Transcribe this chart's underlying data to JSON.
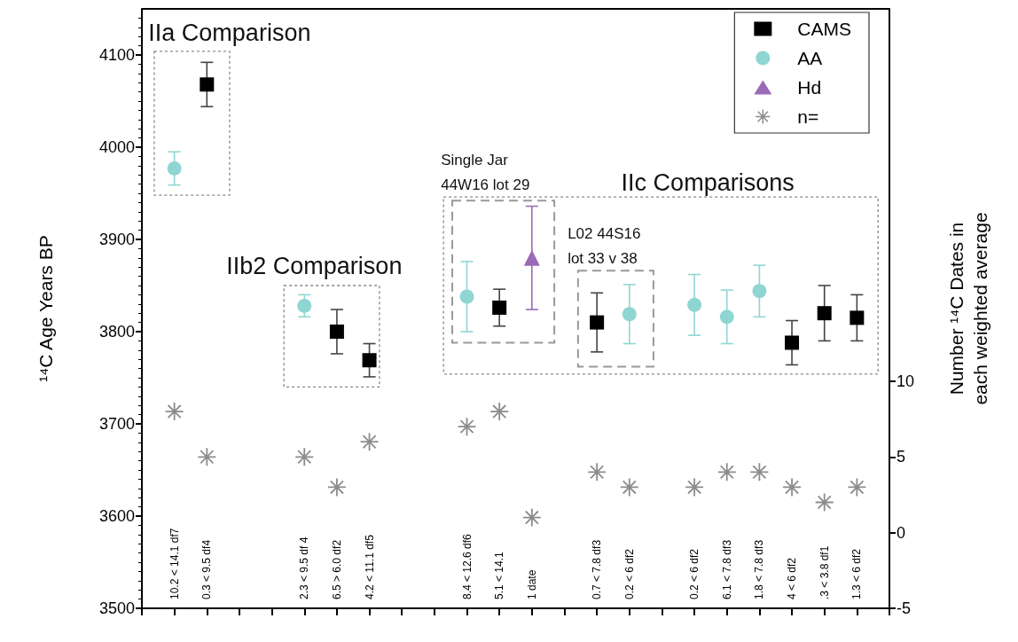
{
  "chart_data": {
    "type": "scatter",
    "ylabel": "¹⁴C Age Years BP",
    "y2label": "Number ¹⁴C Dates in\neach weighted average",
    "categories": [
      null,
      "10.2 < 14.1 df7",
      "0.3 < 9.5 df4",
      null,
      null,
      "2.3 < 9.5 df 4",
      "6.5 > 6.0 df2",
      "4.2 < 11.1 df5",
      null,
      null,
      "8.4 < 12.6 df6",
      "5.1 < 14.1",
      "1 date",
      null,
      "0.7 < 7.8 df3",
      "0.2 < 6 df2",
      null,
      "0.2 < 6 df2",
      "6.1 < 7.8 df3",
      "1.8 < 7.8 df3",
      "4 < 6 df2",
      ".3 < 3.8 df1",
      "1.3 < 6 df2",
      null
    ],
    "ylim": [
      3500,
      4150
    ],
    "yticks": [
      3500,
      3600,
      3700,
      3800,
      3900,
      4000,
      4100
    ],
    "y2lim": [
      -5,
      34.6
    ],
    "y2ticks": [
      -5,
      0,
      5,
      10
    ],
    "grid": false,
    "legend": "top right",
    "series": [
      {
        "name": "CAMS",
        "color": "#000000",
        "marker": "square",
        "values": [
          null,
          null,
          4068,
          null,
          null,
          null,
          3800,
          3769,
          null,
          null,
          null,
          3826,
          null,
          null,
          3810,
          null,
          null,
          null,
          null,
          null,
          3788,
          3820,
          3815,
          null
        ],
        "errors": [
          null,
          null,
          24,
          null,
          null,
          null,
          24,
          18,
          null,
          null,
          null,
          20,
          null,
          null,
          32,
          null,
          null,
          null,
          null,
          null,
          24,
          30,
          25,
          null
        ]
      },
      {
        "name": "AA",
        "color": "#8fd6d2",
        "marker": "circle",
        "values": [
          null,
          3977,
          null,
          null,
          null,
          3828,
          null,
          null,
          null,
          null,
          3838,
          null,
          null,
          null,
          null,
          3819,
          null,
          3829,
          3816,
          3844,
          null,
          null,
          null,
          null
        ],
        "errors": [
          null,
          18,
          null,
          null,
          null,
          12,
          null,
          null,
          null,
          null,
          38,
          null,
          null,
          null,
          null,
          32,
          null,
          33,
          29,
          28,
          null,
          null,
          null,
          null
        ]
      },
      {
        "name": "Hd",
        "color": "#9a6bb5",
        "marker": "triangle",
        "values": [
          null,
          null,
          null,
          null,
          null,
          null,
          null,
          null,
          null,
          null,
          null,
          null,
          3880,
          null,
          null,
          null,
          null,
          null,
          null,
          null,
          null,
          null,
          null,
          null
        ],
        "errors": [
          null,
          null,
          null,
          null,
          null,
          null,
          null,
          null,
          null,
          null,
          null,
          null,
          [
            3824,
            3936
          ],
          null,
          null,
          null,
          null,
          null,
          null,
          null,
          null,
          null,
          null,
          null
        ]
      },
      {
        "name": "n=",
        "color": "#8c8c8c",
        "marker": "cross",
        "axis": "y2",
        "values": [
          null,
          8,
          5,
          null,
          null,
          5,
          3,
          6,
          null,
          null,
          7,
          8,
          1,
          null,
          4,
          3,
          null,
          3,
          4,
          4,
          3,
          2,
          3,
          null
        ]
      }
    ],
    "annotations": [
      "IIa Comparison",
      "IIb2 Comparison",
      "Single Jar\n44W16 lot 29",
      "IIc Comparisons",
      "L02 44S16\nlot 33 v 38"
    ]
  }
}
